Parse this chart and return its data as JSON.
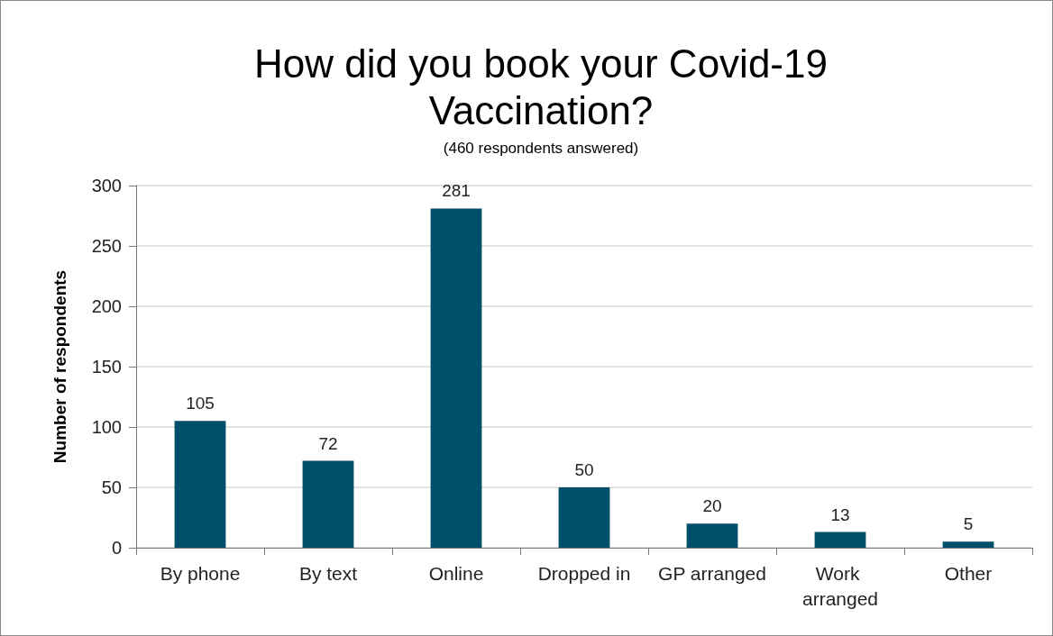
{
  "chart_data": {
    "type": "bar",
    "title": "How did you book your Covid-19\nVaccination?",
    "subtitle": "(460 respondents answered)",
    "ylabel": "Number of respondents",
    "categories": [
      "By phone",
      "By text",
      "Online",
      "Dropped in",
      "GP arranged",
      "Work arranged",
      "Other"
    ],
    "values": [
      105,
      72,
      281,
      50,
      20,
      13,
      5
    ],
    "color": "#004f6b",
    "ylim": [
      0,
      300
    ],
    "yticks": [
      0,
      50,
      100,
      150,
      200,
      250,
      300
    ],
    "grid": "y",
    "data_labels": true
  }
}
